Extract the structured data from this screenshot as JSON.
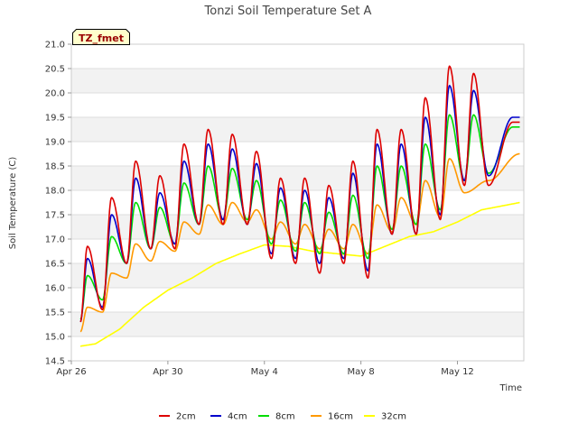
{
  "chart_data": {
    "type": "line",
    "title": "Tonzi Soil Temperature Set A",
    "xlabel": "Time",
    "ylabel": "Soil Temperature (C)",
    "ylim": [
      14.5,
      21.0
    ],
    "yticks": [
      14.5,
      15.0,
      15.5,
      16.0,
      16.5,
      17.0,
      17.5,
      18.0,
      18.5,
      19.0,
      19.5,
      20.0,
      20.5,
      21.0
    ],
    "xlim": [
      "2023-04-26",
      "2023-05-14T18:00"
    ],
    "xticks": [
      {
        "date": "2023-04-26",
        "label": "Apr 26"
      },
      {
        "date": "2023-04-30",
        "label": "Apr 30"
      },
      {
        "date": "2023-05-04",
        "label": "May 4"
      },
      {
        "date": "2023-05-08",
        "label": "May 8"
      },
      {
        "date": "2023-05-12",
        "label": "May 12"
      }
    ],
    "grid": true,
    "legend_position": "bottom",
    "tag_label": "TZ_fmet",
    "days": [
      "Apr 26",
      "Apr 27",
      "Apr 28",
      "Apr 29",
      "Apr 30",
      "May 1",
      "May 2",
      "May 3",
      "May 4",
      "May 5",
      "May 6",
      "May 7",
      "May 8",
      "May 9",
      "May 10",
      "May 11",
      "May 12",
      "May 13",
      "May 14"
    ],
    "series": [
      {
        "name": "2cm",
        "color": "#dd0000",
        "start_value": 15.3,
        "series_start": "2023-04-26T09:00",
        "daily_min": [
          14.6,
          15.55,
          16.5,
          16.8,
          16.8,
          17.3,
          17.3,
          17.3,
          16.6,
          16.5,
          16.3,
          16.5,
          16.2,
          17.1,
          17.1,
          17.4,
          18.1,
          18.1,
          19.4
        ],
        "daily_max": [
          16.85,
          17.85,
          18.6,
          18.3,
          18.95,
          19.25,
          19.15,
          18.8,
          18.25,
          18.25,
          18.1,
          18.6,
          19.25,
          19.25,
          19.9,
          20.55,
          20.4
        ],
        "end_value": 19.4,
        "series_end": "2023-05-14T14:00"
      },
      {
        "name": "4cm",
        "color": "#0000cc",
        "start_value": 15.3,
        "series_start": "2023-04-26T09:00",
        "daily_min": [
          14.75,
          15.6,
          16.5,
          16.8,
          16.9,
          17.3,
          17.4,
          17.3,
          16.7,
          16.6,
          16.5,
          16.6,
          16.35,
          17.1,
          17.1,
          17.5,
          18.2,
          18.3,
          19.5
        ],
        "daily_max": [
          16.6,
          17.5,
          18.25,
          17.95,
          18.6,
          18.95,
          18.85,
          18.55,
          18.05,
          18.0,
          17.85,
          18.35,
          18.95,
          18.95,
          19.5,
          20.15,
          20.05
        ],
        "end_value": 19.5,
        "series_end": "2023-05-14T14:00"
      },
      {
        "name": "8cm",
        "color": "#00dd00",
        "start_value": 15.35,
        "series_start": "2023-04-26T09:00",
        "daily_min": [
          14.9,
          15.75,
          16.5,
          16.8,
          16.9,
          17.3,
          17.4,
          17.4,
          16.9,
          16.75,
          16.7,
          16.7,
          16.6,
          17.2,
          17.3,
          17.6,
          18.2,
          18.35,
          19.3
        ],
        "daily_max": [
          16.25,
          17.05,
          17.75,
          17.65,
          18.15,
          18.5,
          18.45,
          18.2,
          17.8,
          17.75,
          17.55,
          17.9,
          18.5,
          18.5,
          18.95,
          19.55,
          19.55
        ],
        "end_value": 19.3,
        "series_end": "2023-05-14T14:00"
      },
      {
        "name": "16cm",
        "color": "#ff9900",
        "start_value": 15.1,
        "series_start": "2023-04-26T09:00",
        "daily_min": [
          14.95,
          15.5,
          16.2,
          16.55,
          16.75,
          17.1,
          17.3,
          17.35,
          17.0,
          16.9,
          16.8,
          16.8,
          16.7,
          17.15,
          17.3,
          17.45,
          17.95,
          18.2
        ],
        "daily_max": [
          15.6,
          16.3,
          16.9,
          16.95,
          17.35,
          17.7,
          17.75,
          17.6,
          17.35,
          17.3,
          17.2,
          17.3,
          17.7,
          17.85,
          18.2,
          18.65
        ],
        "end_value": 18.75,
        "series_end": "2023-05-14T14:00"
      },
      {
        "name": "32cm",
        "color": "#ffff00",
        "series_start": "2023-04-26T09:00",
        "series_end": "2023-05-14T14:00",
        "trend": [
          {
            "date": "2023-04-26T09:00",
            "value": 14.8
          },
          {
            "date": "2023-04-27",
            "value": 14.85
          },
          {
            "date": "2023-04-28",
            "value": 15.15
          },
          {
            "date": "2023-04-29",
            "value": 15.6
          },
          {
            "date": "2023-04-30",
            "value": 15.95
          },
          {
            "date": "2023-05-01",
            "value": 16.2
          },
          {
            "date": "2023-05-02",
            "value": 16.5
          },
          {
            "date": "2023-05-03",
            "value": 16.7
          },
          {
            "date": "2023-05-04",
            "value": 16.88
          },
          {
            "date": "2023-05-05",
            "value": 16.85
          },
          {
            "date": "2023-05-06",
            "value": 16.75
          },
          {
            "date": "2023-05-07",
            "value": 16.7
          },
          {
            "date": "2023-05-08",
            "value": 16.65
          },
          {
            "date": "2023-05-09",
            "value": 16.85
          },
          {
            "date": "2023-05-10",
            "value": 17.05
          },
          {
            "date": "2023-05-11",
            "value": 17.15
          },
          {
            "date": "2023-05-12",
            "value": 17.35
          },
          {
            "date": "2023-05-13",
            "value": 17.6
          },
          {
            "date": "2023-05-14T14:00",
            "value": 17.75
          }
        ]
      }
    ]
  }
}
